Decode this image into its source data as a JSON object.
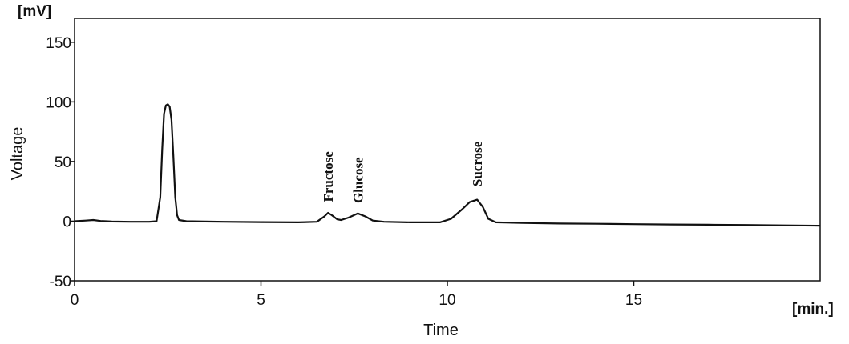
{
  "chart_data": {
    "type": "line",
    "xlabel": "Time",
    "ylabel": "Voltage",
    "x_unit": "[min.]",
    "y_unit": "[mV]",
    "xlim": [
      0,
      20
    ],
    "ylim": [
      -50,
      170
    ],
    "x_ticks": [
      0,
      5,
      10,
      15
    ],
    "y_ticks": [
      -50,
      0,
      50,
      100,
      150
    ],
    "grid": false,
    "peak_labels": [
      {
        "text": "Fructose",
        "x": 6.8,
        "y": 8
      },
      {
        "text": "Glucose",
        "x": 7.6,
        "y": 7
      },
      {
        "text": "Sucrose",
        "x": 10.8,
        "y": 21
      }
    ],
    "series": [
      {
        "points": [
          [
            0.0,
            0.0
          ],
          [
            0.3,
            0.5
          ],
          [
            0.5,
            1.0
          ],
          [
            0.7,
            0.2
          ],
          [
            1.0,
            -0.3
          ],
          [
            1.5,
            -0.5
          ],
          [
            2.0,
            -0.5
          ],
          [
            2.2,
            0.0
          ],
          [
            2.3,
            20
          ],
          [
            2.35,
            60
          ],
          [
            2.4,
            90
          ],
          [
            2.45,
            97
          ],
          [
            2.5,
            98
          ],
          [
            2.55,
            96
          ],
          [
            2.6,
            85
          ],
          [
            2.65,
            55
          ],
          [
            2.7,
            20
          ],
          [
            2.75,
            5
          ],
          [
            2.8,
            1.0
          ],
          [
            3.0,
            0.0
          ],
          [
            3.5,
            -0.3
          ],
          [
            4.0,
            -0.5
          ],
          [
            5.0,
            -0.8
          ],
          [
            6.0,
            -1.0
          ],
          [
            6.5,
            -0.5
          ],
          [
            6.7,
            4
          ],
          [
            6.8,
            7
          ],
          [
            6.9,
            5
          ],
          [
            7.05,
            1.5
          ],
          [
            7.15,
            1.0
          ],
          [
            7.35,
            3
          ],
          [
            7.6,
            6.5
          ],
          [
            7.8,
            4
          ],
          [
            8.0,
            0.5
          ],
          [
            8.3,
            -0.5
          ],
          [
            9.0,
            -1.0
          ],
          [
            9.8,
            -1.0
          ],
          [
            10.1,
            2
          ],
          [
            10.4,
            10
          ],
          [
            10.6,
            16
          ],
          [
            10.8,
            18
          ],
          [
            10.95,
            12
          ],
          [
            11.1,
            2
          ],
          [
            11.3,
            -1.0
          ],
          [
            12.0,
            -1.5
          ],
          [
            13.0,
            -2.0
          ],
          [
            14.0,
            -2.2
          ],
          [
            15.0,
            -2.5
          ],
          [
            16.0,
            -2.8
          ],
          [
            17.0,
            -3.0
          ],
          [
            18.0,
            -3.2
          ],
          [
            19.0,
            -3.5
          ],
          [
            20.0,
            -3.8
          ]
        ]
      }
    ]
  }
}
